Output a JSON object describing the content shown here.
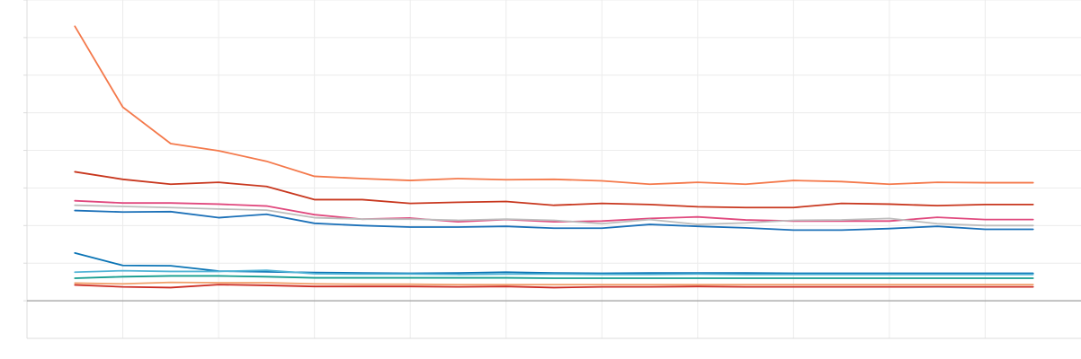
{
  "chart_data": {
    "type": "line",
    "x": [
      1,
      2,
      3,
      4,
      5,
      6,
      7,
      8,
      9,
      10,
      11,
      12,
      13,
      14,
      15,
      16,
      17,
      18,
      19,
      20,
      21
    ],
    "xlim": [
      0,
      22
    ],
    "ylim": [
      -1,
      8
    ],
    "grid": true,
    "legend": "none",
    "series": [
      {
        "color": "#f4794b",
        "values": [
          7.3,
          5.15,
          4.18,
          3.99,
          3.71,
          3.31,
          3.25,
          3.2,
          3.25,
          3.22,
          3.23,
          3.19,
          3.1,
          3.15,
          3.1,
          3.2,
          3.17,
          3.1,
          3.15,
          3.14,
          3.14
        ]
      },
      {
        "color": "#c8371e",
        "values": [
          3.43,
          3.23,
          3.1,
          3.15,
          3.04,
          2.69,
          2.69,
          2.59,
          2.62,
          2.64,
          2.54,
          2.59,
          2.56,
          2.5,
          2.48,
          2.48,
          2.59,
          2.57,
          2.53,
          2.56,
          2.56
        ]
      },
      {
        "color": "#e0497e",
        "values": [
          2.66,
          2.6,
          2.6,
          2.57,
          2.52,
          2.29,
          2.17,
          2.2,
          2.1,
          2.16,
          2.1,
          2.12,
          2.19,
          2.23,
          2.15,
          2.12,
          2.12,
          2.12,
          2.22,
          2.16,
          2.16
        ]
      },
      {
        "color": "#bdbdbd",
        "values": [
          2.54,
          2.51,
          2.48,
          2.44,
          2.41,
          2.21,
          2.17,
          2.17,
          2.14,
          2.17,
          2.14,
          2.05,
          2.16,
          2.03,
          2.07,
          2.14,
          2.15,
          2.19,
          2.05,
          2.0,
          2.0
        ]
      },
      {
        "color": "#1b70b8",
        "values": [
          2.4,
          2.36,
          2.37,
          2.21,
          2.3,
          2.06,
          2.0,
          1.96,
          1.96,
          1.98,
          1.93,
          1.93,
          2.03,
          1.98,
          1.94,
          1.88,
          1.88,
          1.92,
          1.98,
          1.9,
          1.9
        ]
      },
      {
        "color": "#0a74b5",
        "values": [
          1.27,
          0.94,
          0.93,
          0.79,
          0.77,
          0.75,
          0.74,
          0.73,
          0.74,
          0.76,
          0.74,
          0.73,
          0.74,
          0.74,
          0.74,
          0.73,
          0.73,
          0.73,
          0.73,
          0.73,
          0.73
        ]
      },
      {
        "color": "#52b4d6",
        "values": [
          0.76,
          0.8,
          0.78,
          0.78,
          0.81,
          0.72,
          0.71,
          0.71,
          0.7,
          0.71,
          0.71,
          0.7,
          0.7,
          0.71,
          0.7,
          0.7,
          0.7,
          0.7,
          0.7,
          0.7,
          0.7
        ]
      },
      {
        "color": "#139c8e",
        "values": [
          0.6,
          0.64,
          0.66,
          0.66,
          0.64,
          0.61,
          0.61,
          0.61,
          0.61,
          0.61,
          0.6,
          0.6,
          0.6,
          0.6,
          0.6,
          0.6,
          0.6,
          0.6,
          0.6,
          0.6,
          0.6
        ]
      },
      {
        "color": "#f0a06b",
        "values": [
          0.47,
          0.45,
          0.49,
          0.48,
          0.48,
          0.45,
          0.44,
          0.44,
          0.43,
          0.43,
          0.43,
          0.43,
          0.43,
          0.43,
          0.43,
          0.43,
          0.43,
          0.43,
          0.43,
          0.43,
          0.43
        ]
      },
      {
        "color": "#cc2b22",
        "values": [
          0.42,
          0.37,
          0.35,
          0.43,
          0.41,
          0.38,
          0.38,
          0.38,
          0.37,
          0.38,
          0.35,
          0.37,
          0.37,
          0.38,
          0.37,
          0.37,
          0.37,
          0.37,
          0.37,
          0.37,
          0.37
        ]
      }
    ]
  }
}
